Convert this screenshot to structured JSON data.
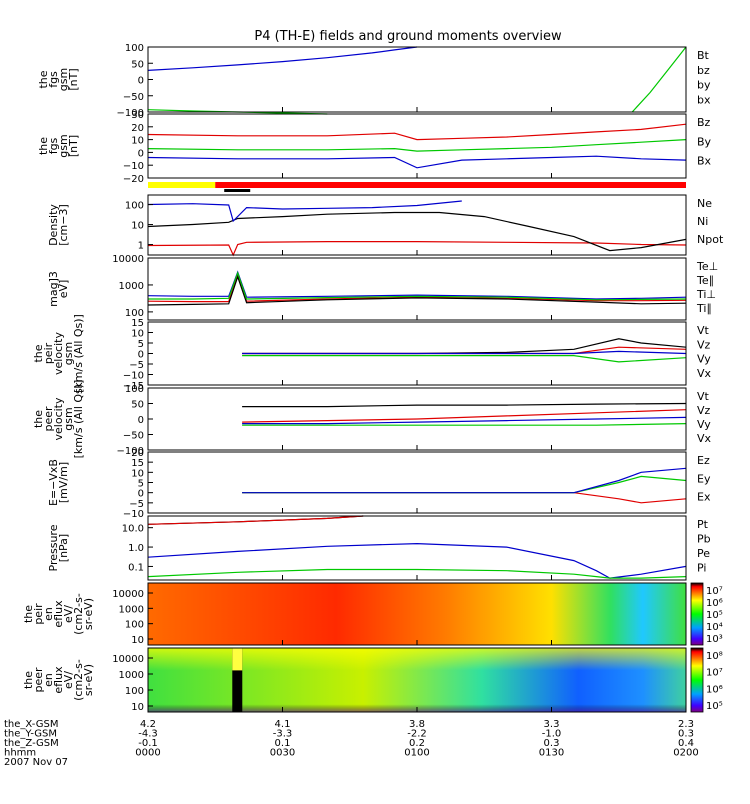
{
  "title": "P4 (TH-E) fields and ground moments overview",
  "colors": {
    "black": "#000000",
    "red": "#e00000",
    "green": "#00c800",
    "blue": "#0000cc",
    "yellow": "#ffff00",
    "bar_red": "#ff0000"
  },
  "time_axis": {
    "rows": [
      {
        "label": "the_X-GSM",
        "values": [
          "4.2",
          "4.1",
          "3.8",
          "3.3",
          "2.3"
        ]
      },
      {
        "label": "the_Y-GSM",
        "values": [
          "-4.3",
          "-3.3",
          "-2.2",
          "-1.0",
          "0.3"
        ]
      },
      {
        "label": "the_Z-GSM",
        "values": [
          "-0.1",
          "0.1",
          "0.2",
          "0.3",
          "0.4"
        ]
      },
      {
        "label": "hhmm",
        "values": [
          "0000",
          "0030",
          "0100",
          "0130",
          "0200"
        ]
      }
    ],
    "date": "2007 Nov 07"
  },
  "chart_data": [
    {
      "type": "line",
      "ylabel": [
        "the",
        "fgs",
        "gsm",
        "[nT]"
      ],
      "yticks": [
        "100",
        "50",
        "0",
        "−50",
        "−100"
      ],
      "ylim": [
        -100,
        100
      ],
      "legend": [
        "Bt",
        "bz",
        "by",
        "bx"
      ],
      "legend_colors": [
        "#000000",
        "#e00000",
        "#00c800",
        "#0000cc"
      ],
      "series": [
        {
          "name": "bx",
          "x": [
            0,
            10,
            20,
            30,
            40,
            50,
            55,
            60
          ],
          "y": [
            28,
            36,
            45,
            55,
            67,
            82,
            91,
            100
          ]
        },
        {
          "name": "by",
          "x": [
            0,
            10,
            20,
            30,
            40
          ],
          "y": [
            -93,
            -97,
            -100,
            -103,
            -106
          ]
        },
        {
          "name": "by",
          "x": [
            108,
            112,
            116,
            120
          ],
          "y": [
            -100,
            -40,
            30,
            100
          ]
        }
      ]
    },
    {
      "type": "line",
      "ylabel": [
        "the",
        "fgs",
        "gsm",
        "[nT]"
      ],
      "yticks": [
        "30",
        "20",
        "10",
        "0",
        "−10",
        "−20"
      ],
      "ylim": [
        -20,
        30
      ],
      "legend": [
        "Bz",
        "By",
        "Bx"
      ],
      "legend_colors": [
        "#e00000",
        "#00c800",
        "#0000cc"
      ],
      "series": [
        {
          "name": "Bz",
          "x": [
            0,
            20,
            40,
            55,
            60,
            70,
            80,
            90,
            100,
            110,
            120
          ],
          "y": [
            14,
            13,
            13,
            15,
            10,
            11,
            12,
            14,
            16,
            18,
            22
          ]
        },
        {
          "name": "By",
          "x": [
            0,
            20,
            40,
            55,
            60,
            70,
            80,
            90,
            100,
            110,
            120
          ],
          "y": [
            3,
            2,
            2,
            3,
            1,
            2,
            3,
            4,
            6,
            8,
            10
          ]
        },
        {
          "name": "Bx",
          "x": [
            0,
            20,
            40,
            55,
            60,
            70,
            80,
            90,
            100,
            110,
            120
          ],
          "y": [
            -4,
            -5,
            -5,
            -4,
            -12,
            -6,
            -5,
            -4,
            -3,
            -5,
            -6
          ]
        }
      ]
    },
    {
      "type": "line",
      "ylabel": [
        "Density",
        "[cm−3]"
      ],
      "yticks": [
        "100",
        "10",
        "1"
      ],
      "yscale": "log",
      "ylim": [
        0.3,
        300
      ],
      "legend": [
        "Ne",
        "Ni",
        "Npot"
      ],
      "legend_colors": [
        "#e00000",
        "#000000",
        "#0000cc"
      ],
      "series": [
        {
          "name": "Ne",
          "x": [
            0,
            18,
            19,
            20,
            22,
            40,
            60,
            80,
            100,
            110,
            120
          ],
          "y": [
            0.9,
            0.95,
            0.3,
            1.0,
            1.3,
            1.4,
            1.4,
            1.3,
            1.2,
            1.0,
            0.95
          ]
        },
        {
          "name": "Ni",
          "x": [
            0,
            10,
            18,
            20,
            30,
            40,
            55,
            65,
            75,
            85,
            95,
            103,
            110,
            120
          ],
          "y": [
            8,
            10,
            13,
            20,
            25,
            33,
            40,
            40,
            25,
            8,
            2.5,
            0.5,
            0.7,
            1.8
          ]
        },
        {
          "name": "Npot",
          "x": [
            0,
            10,
            18,
            19,
            22,
            30,
            40,
            50,
            60,
            70
          ],
          "y": [
            100,
            110,
            95,
            15,
            70,
            60,
            65,
            70,
            90,
            150
          ]
        }
      ]
    },
    {
      "type": "line",
      "ylabel": [
        "mag]3",
        "eV]"
      ],
      "yticks": [
        "10000",
        "1000",
        "100"
      ],
      "yscale": "log",
      "ylim": [
        50,
        10000
      ],
      "legend": [
        "Te⊥",
        "Te∥",
        "Ti⊥",
        "Ti∥"
      ],
      "legend_colors": [
        "#e00000",
        "#000000",
        "#0000cc",
        "#00c800"
      ],
      "series": [
        {
          "name": "Ti⊥",
          "x": [
            0,
            10,
            18,
            20,
            22,
            40,
            60,
            80,
            100,
            110,
            120
          ],
          "y": [
            400,
            380,
            380,
            3000,
            350,
            380,
            420,
            380,
            300,
            320,
            350
          ]
        },
        {
          "name": "Te⊥",
          "x": [
            0,
            10,
            18,
            20,
            22,
            40,
            60,
            80,
            100,
            110,
            120
          ],
          "y": [
            250,
            240,
            240,
            2500,
            250,
            300,
            350,
            320,
            260,
            260,
            270
          ]
        },
        {
          "name": "Te∥",
          "x": [
            0,
            10,
            18,
            20,
            22,
            40,
            60,
            80,
            100,
            110,
            120
          ],
          "y": [
            180,
            190,
            200,
            2000,
            220,
            280,
            330,
            300,
            230,
            200,
            210
          ]
        },
        {
          "name": "Ti∥",
          "x": [
            0,
            10,
            18,
            20,
            22,
            40,
            60,
            80,
            100,
            110,
            120
          ],
          "y": [
            300,
            300,
            320,
            2800,
            300,
            340,
            380,
            350,
            280,
            290,
            300
          ]
        }
      ]
    },
    {
      "type": "line",
      "ylabel": [
        "the",
        "peir",
        "velocity",
        "gsm",
        "[km/s (All Qs)]"
      ],
      "yticks": [
        "15",
        "10",
        "5",
        "0",
        "−5",
        "−10",
        "−15"
      ],
      "ylim": [
        -15,
        15
      ],
      "legend": [
        "Vt",
        "Vz",
        "Vy",
        "Vx"
      ],
      "legend_colors": [
        "#000000",
        "#e00000",
        "#00c800",
        "#0000cc"
      ],
      "series": [
        {
          "name": "Vt",
          "x": [
            21,
            40,
            60,
            80,
            95,
            105,
            110,
            120
          ],
          "y": [
            0,
            0,
            0,
            0.5,
            2,
            7,
            5,
            3
          ]
        },
        {
          "name": "Vz",
          "x": [
            21,
            60,
            95,
            105,
            120
          ],
          "y": [
            0,
            0,
            0,
            3,
            2
          ]
        },
        {
          "name": "Vy",
          "x": [
            21,
            60,
            95,
            105,
            120
          ],
          "y": [
            -1,
            -1,
            -1,
            -4,
            -2
          ]
        },
        {
          "name": "Vx",
          "x": [
            21,
            60,
            95,
            105,
            120
          ],
          "y": [
            0,
            0,
            0,
            1,
            0
          ]
        }
      ]
    },
    {
      "type": "line",
      "ylabel": [
        "the",
        "peer",
        "velocity",
        "gsm",
        "[km/s (All Qs)]"
      ],
      "yticks": [
        "100",
        "50",
        "0",
        "−50",
        "−100"
      ],
      "ylim": [
        -100,
        100
      ],
      "legend": [
        "Vt",
        "Vz",
        "Vy",
        "Vx"
      ],
      "legend_colors": [
        "#000000",
        "#e00000",
        "#00c800",
        "#0000cc"
      ],
      "series": [
        {
          "name": "Vt",
          "x": [
            21,
            40,
            60,
            80,
            100,
            120
          ],
          "y": [
            40,
            40,
            45,
            45,
            48,
            50
          ]
        },
        {
          "name": "Vz",
          "x": [
            21,
            40,
            60,
            80,
            100,
            120
          ],
          "y": [
            -10,
            -5,
            0,
            10,
            20,
            30
          ]
        },
        {
          "name": "Vy",
          "x": [
            21,
            40,
            60,
            80,
            100,
            120
          ],
          "y": [
            -20,
            -20,
            -20,
            -20,
            -20,
            -15
          ]
        },
        {
          "name": "Vx",
          "x": [
            21,
            40,
            60,
            80,
            100,
            120
          ],
          "y": [
            -15,
            -15,
            -10,
            -5,
            0,
            5
          ]
        }
      ]
    },
    {
      "type": "line",
      "ylabel": [
        "E=−VxB",
        "[mV/m]"
      ],
      "yticks": [
        "20",
        "15",
        "10",
        "5",
        "0",
        "−5",
        "−10"
      ],
      "ylim": [
        -10,
        20
      ],
      "legend": [
        "Ez",
        "Ey",
        "Ex"
      ],
      "legend_colors": [
        "#e00000",
        "#00c800",
        "#0000cc"
      ],
      "series": [
        {
          "name": "Ez",
          "x": [
            21,
            80,
            95,
            105,
            110,
            120
          ],
          "y": [
            0,
            0,
            0,
            -3,
            -5,
            -3
          ]
        },
        {
          "name": "Ey",
          "x": [
            21,
            80,
            95,
            105,
            110,
            120
          ],
          "y": [
            0,
            0,
            0,
            5,
            8,
            6
          ]
        },
        {
          "name": "Ex",
          "x": [
            21,
            80,
            95,
            105,
            110,
            120
          ],
          "y": [
            0,
            0,
            0,
            6,
            10,
            12
          ]
        }
      ]
    },
    {
      "type": "line",
      "ylabel": [
        "Pressure",
        "[nPa]"
      ],
      "yticks": [
        "10.0",
        "1.0",
        "0.1"
      ],
      "yscale": "log",
      "ylim": [
        0.02,
        40
      ],
      "legend": [
        "Pt",
        "Pb",
        "Pe",
        "Pi"
      ],
      "legend_colors": [
        "#000000",
        "#e00000",
        "#00c800",
        "#0000cc"
      ],
      "series": [
        {
          "name": "Pt",
          "x": [
            0,
            20,
            40,
            48
          ],
          "y": [
            15,
            20,
            30,
            40
          ]
        },
        {
          "name": "Pb",
          "x": [
            0,
            20,
            40,
            48
          ],
          "y": [
            15,
            20,
            30,
            40
          ]
        },
        {
          "name": "Pi",
          "x": [
            0,
            20,
            40,
            60,
            80,
            95,
            100,
            103,
            110,
            120
          ],
          "y": [
            0.3,
            0.6,
            1.1,
            1.5,
            1.0,
            0.2,
            0.06,
            0.025,
            0.04,
            0.1
          ]
        },
        {
          "name": "Pe",
          "x": [
            0,
            20,
            40,
            60,
            80,
            95,
            100,
            103,
            110,
            120
          ],
          "y": [
            0.03,
            0.05,
            0.07,
            0.07,
            0.06,
            0.04,
            0.03,
            0.025,
            0.025,
            0.03
          ]
        }
      ]
    },
    {
      "type": "heatmap",
      "ylabel": [
        "the",
        "peir",
        "en",
        "eflux",
        "eV/",
        "(cm2-s-",
        "sr-eV)"
      ],
      "yticks": [
        "10000",
        "1000",
        "100",
        "10"
      ],
      "colorbar_ticks": [
        "10⁷",
        "10⁶",
        "10⁵",
        "10⁴",
        "10³"
      ]
    },
    {
      "type": "heatmap",
      "ylabel": [
        "the",
        "peer",
        "en",
        "eflux",
        "eV/",
        "(cm2-s-",
        "sr-eV)"
      ],
      "yticks": [
        "10000",
        "1000",
        "100",
        "10"
      ],
      "colorbar_ticks": [
        "10⁸",
        "10⁷",
        "10⁶",
        "10⁵"
      ]
    }
  ]
}
